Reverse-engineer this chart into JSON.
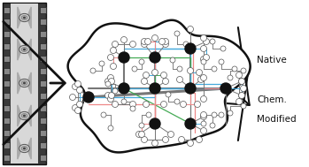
{
  "bg_color": "#ffffff",
  "fig_w": 3.49,
  "fig_h": 1.89,
  "dpi": 100,
  "arrow_color": "#111111",
  "gray": "#777777",
  "blue": "#44aadd",
  "green": "#44aa55",
  "pink": "#ee8888",
  "node_color": "#111111",
  "label_native": "Native",
  "label_chem_1": "Chem.",
  "label_chem_2": "Modified",
  "label_fontsize": 7.5,
  "label_bold": false
}
